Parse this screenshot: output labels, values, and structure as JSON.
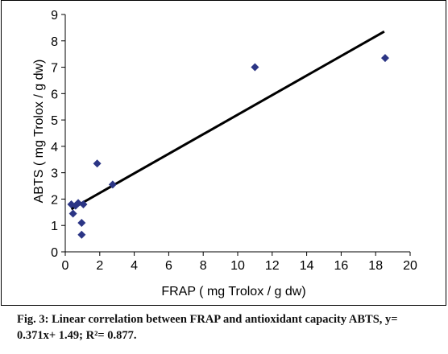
{
  "chart_data": {
    "type": "scatter",
    "title": "",
    "xlabel": "FRAP ( mg Trolox / g dw)",
    "ylabel": "ABTS ( mg Trolox / g dw)",
    "xlim": [
      0,
      20
    ],
    "ylim": [
      0,
      9
    ],
    "xticks": [
      0,
      2,
      4,
      6,
      8,
      10,
      12,
      14,
      16,
      18,
      20
    ],
    "yticks": [
      0,
      1,
      2,
      3,
      4,
      5,
      6,
      7,
      8,
      9
    ],
    "grid": false,
    "legend": "none",
    "marker": "diamond",
    "marker_color": "#2b3585",
    "points": [
      {
        "x": 0.35,
        "y": 1.8
      },
      {
        "x": 0.45,
        "y": 1.45
      },
      {
        "x": 0.6,
        "y": 1.75
      },
      {
        "x": 0.75,
        "y": 1.85
      },
      {
        "x": 0.95,
        "y": 1.1
      },
      {
        "x": 0.95,
        "y": 0.65
      },
      {
        "x": 1.05,
        "y": 1.8
      },
      {
        "x": 1.85,
        "y": 3.35
      },
      {
        "x": 2.75,
        "y": 2.55
      },
      {
        "x": 11.0,
        "y": 7.0
      },
      {
        "x": 18.55,
        "y": 7.35
      }
    ],
    "trendline": {
      "slope": 0.371,
      "intercept": 1.49,
      "x_range": [
        0.35,
        18.5
      ],
      "color": "#000000"
    }
  },
  "caption": {
    "text": "Fig. 3: Linear correlation between FRAP and antioxidant capacity ABTS, y= 0.371x+ 1.49; R²= 0.877."
  }
}
